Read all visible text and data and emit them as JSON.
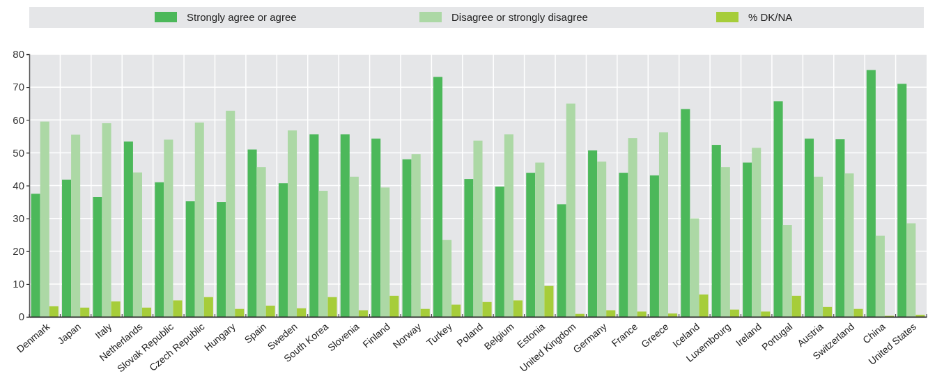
{
  "chart_data": {
    "type": "bar",
    "categories": [
      "Denmark",
      "Japan",
      "Italy",
      "Netherlands",
      "Slovak Republic",
      "Czech Republic",
      "Hungary",
      "Spain",
      "Sweden",
      "South Korea",
      "Slovenia",
      "Finland",
      "Norway",
      "Turkey",
      "Poland",
      "Belgium",
      "Estonia",
      "United Kingdom",
      "Germany",
      "France",
      "Greece",
      "Iceland",
      "Luxembourg",
      "Ireland",
      "Portugal",
      "Austria",
      "Switzerland",
      "China",
      "United States"
    ],
    "series": [
      {
        "name": "Strongly agree or agree",
        "color": "#4cb85a",
        "values": [
          37.5,
          41.8,
          36.5,
          53.4,
          41,
          35.2,
          35,
          51,
          40.7,
          55.6,
          55.6,
          54.3,
          48,
          73.1,
          42,
          39.7,
          43.9,
          34.3,
          50.7,
          43.9,
          43.1,
          63.3,
          52.4,
          47,
          65.7,
          54.3,
          54.1,
          75.2,
          71
        ]
      },
      {
        "name": "Disagree or strongly disagree",
        "color": "#acd8a5",
        "values": [
          59.5,
          55.5,
          59,
          44,
          54,
          59.2,
          62.8,
          45.6,
          56.8,
          38.4,
          42.7,
          39.4,
          49.6,
          23.4,
          53.7,
          55.6,
          47,
          65,
          47.3,
          54.5,
          56.2,
          30,
          45.6,
          51.5,
          28,
          42.7,
          43.7,
          24.7,
          28.5
        ]
      },
      {
        "name": "% DK/NA",
        "color": "#a6cd3a",
        "values": [
          3.2,
          2.8,
          4.7,
          2.8,
          5,
          6,
          2.4,
          3.4,
          2.6,
          6,
          2,
          6.4,
          2.4,
          3.7,
          4.5,
          5,
          9.4,
          0.9,
          2,
          1.6,
          1,
          6.8,
          2.2,
          1.6,
          6.4,
          3,
          2.4,
          0.3,
          0.6
        ]
      }
    ],
    "ylim": [
      0,
      80
    ],
    "yticks": [
      0,
      10,
      20,
      30,
      40,
      50,
      60,
      70,
      80
    ],
    "grid": true,
    "legend": "top"
  }
}
